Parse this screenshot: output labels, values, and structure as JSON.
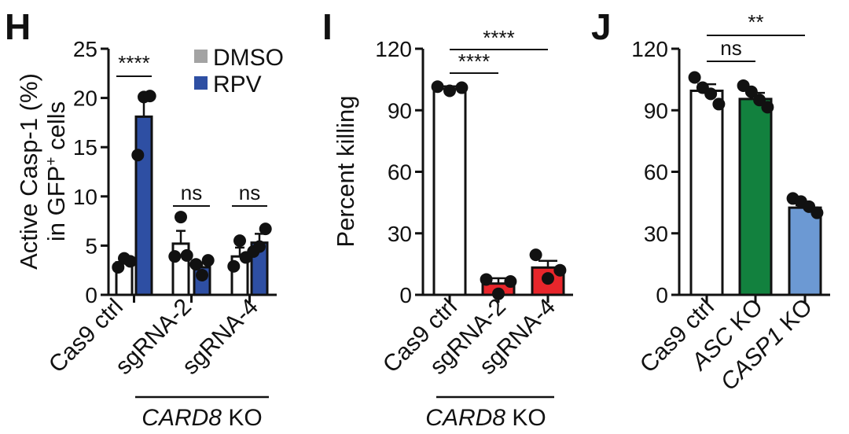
{
  "colors": {
    "axis": "#111111",
    "DMSO": "#a3a3a3",
    "RPV": "#2e4fa3",
    "white_bar": "#ffffff",
    "red_bar": "#e8262b",
    "green_bar": "#12813e",
    "lightblue_bar": "#6c99d3",
    "point": "#111111"
  },
  "chart_data": [
    {
      "panel": "H",
      "type": "bar",
      "ylabel_line1": "Active Casp-1 (%)",
      "ylabel_line2_pre": "in GFP",
      "ylabel_line2_sup": "+",
      "ylabel_line2_post": " cells",
      "ylim": [
        0,
        25
      ],
      "yticks": [
        "0",
        "5",
        "10",
        "15",
        "20",
        "25"
      ],
      "categories": [
        "Cas9 ctrl",
        "sgRNA-2",
        "sgRNA-4"
      ],
      "group_label_italic": "CARD8",
      "group_label_rest": " KO",
      "legend": [
        {
          "name": "DMSO",
          "color": "#a3a3a3"
        },
        {
          "name": "RPV",
          "color": "#2e4fa3"
        }
      ],
      "series": [
        {
          "name": "DMSO",
          "values": [
            3.3,
            5.2,
            3.9
          ],
          "sem": [
            0.7,
            1.3,
            0.9
          ],
          "points": [
            [
              2.8,
              3.7,
              3.4
            ],
            [
              3.9,
              7.9,
              4.0
            ],
            [
              2.9,
              5.5,
              3.8
            ]
          ]
        },
        {
          "name": "RPV",
          "values": [
            18.1,
            2.8,
            5.3
          ],
          "sem": [
            2.0,
            0.5,
            0.9
          ],
          "points": [
            [
              14.2,
              20.1,
              20.2
            ],
            [
              3.1,
              2.0,
              3.5
            ],
            [
              4.4,
              4.9,
              6.7
            ]
          ]
        }
      ],
      "significance": [
        {
          "label": "****",
          "category": 0
        },
        {
          "label": "ns",
          "category": 1
        },
        {
          "label": "ns",
          "category": 2
        }
      ]
    },
    {
      "panel": "I",
      "type": "bar",
      "ylabel": "Percent killing",
      "ylim": [
        0,
        120
      ],
      "yticks": [
        "0",
        "30",
        "60",
        "90",
        "120"
      ],
      "categories": [
        "Cas9 ctrl",
        "sgRNA-2",
        "sgRNA-4"
      ],
      "group_label_italic": "CARD8",
      "group_label_rest": " KO",
      "colors": [
        "#ffffff",
        "#e8262b",
        "#e8262b"
      ],
      "values": [
        100.5,
        5.5,
        13.3
      ],
      "sem": [
        1.2,
        2.6,
        3.3
      ],
      "points": [
        [
          101.5,
          99.5,
          101.0
        ],
        [
          7.5,
          0.5,
          6.5
        ],
        [
          19.5,
          8.0,
          12.0
        ]
      ],
      "significance": [
        {
          "label": "****",
          "from": 0,
          "to": 1
        },
        {
          "label": "****",
          "from": 0,
          "to": 2
        }
      ]
    },
    {
      "panel": "J",
      "type": "bar",
      "ylim": [
        0,
        120
      ],
      "yticks": [
        "0",
        "30",
        "60",
        "90",
        "120"
      ],
      "categories": [
        "Cas9 ctrl",
        "ASC KO",
        "CASP1 KO"
      ],
      "categories_italic_part": [
        "",
        "ASC",
        "CASP1"
      ],
      "categories_rest_part": [
        "Cas9 ctrl",
        " KO",
        " KO"
      ],
      "colors": [
        "#ffffff",
        "#12813e",
        "#6c99d3"
      ],
      "values": [
        99.5,
        95.5,
        42.5
      ],
      "sem": [
        3.2,
        3.0,
        1.2
      ],
      "points": [
        [
          106.0,
          101.0,
          98.0,
          93.0
        ],
        [
          102.0,
          99.0,
          95.0,
          91.5
        ],
        [
          47.0,
          45.5,
          43.0,
          40.0
        ]
      ],
      "significance": [
        {
          "label": "ns",
          "from": 0,
          "to": 1
        },
        {
          "label": "**",
          "from": 0,
          "to": 2
        }
      ]
    }
  ]
}
